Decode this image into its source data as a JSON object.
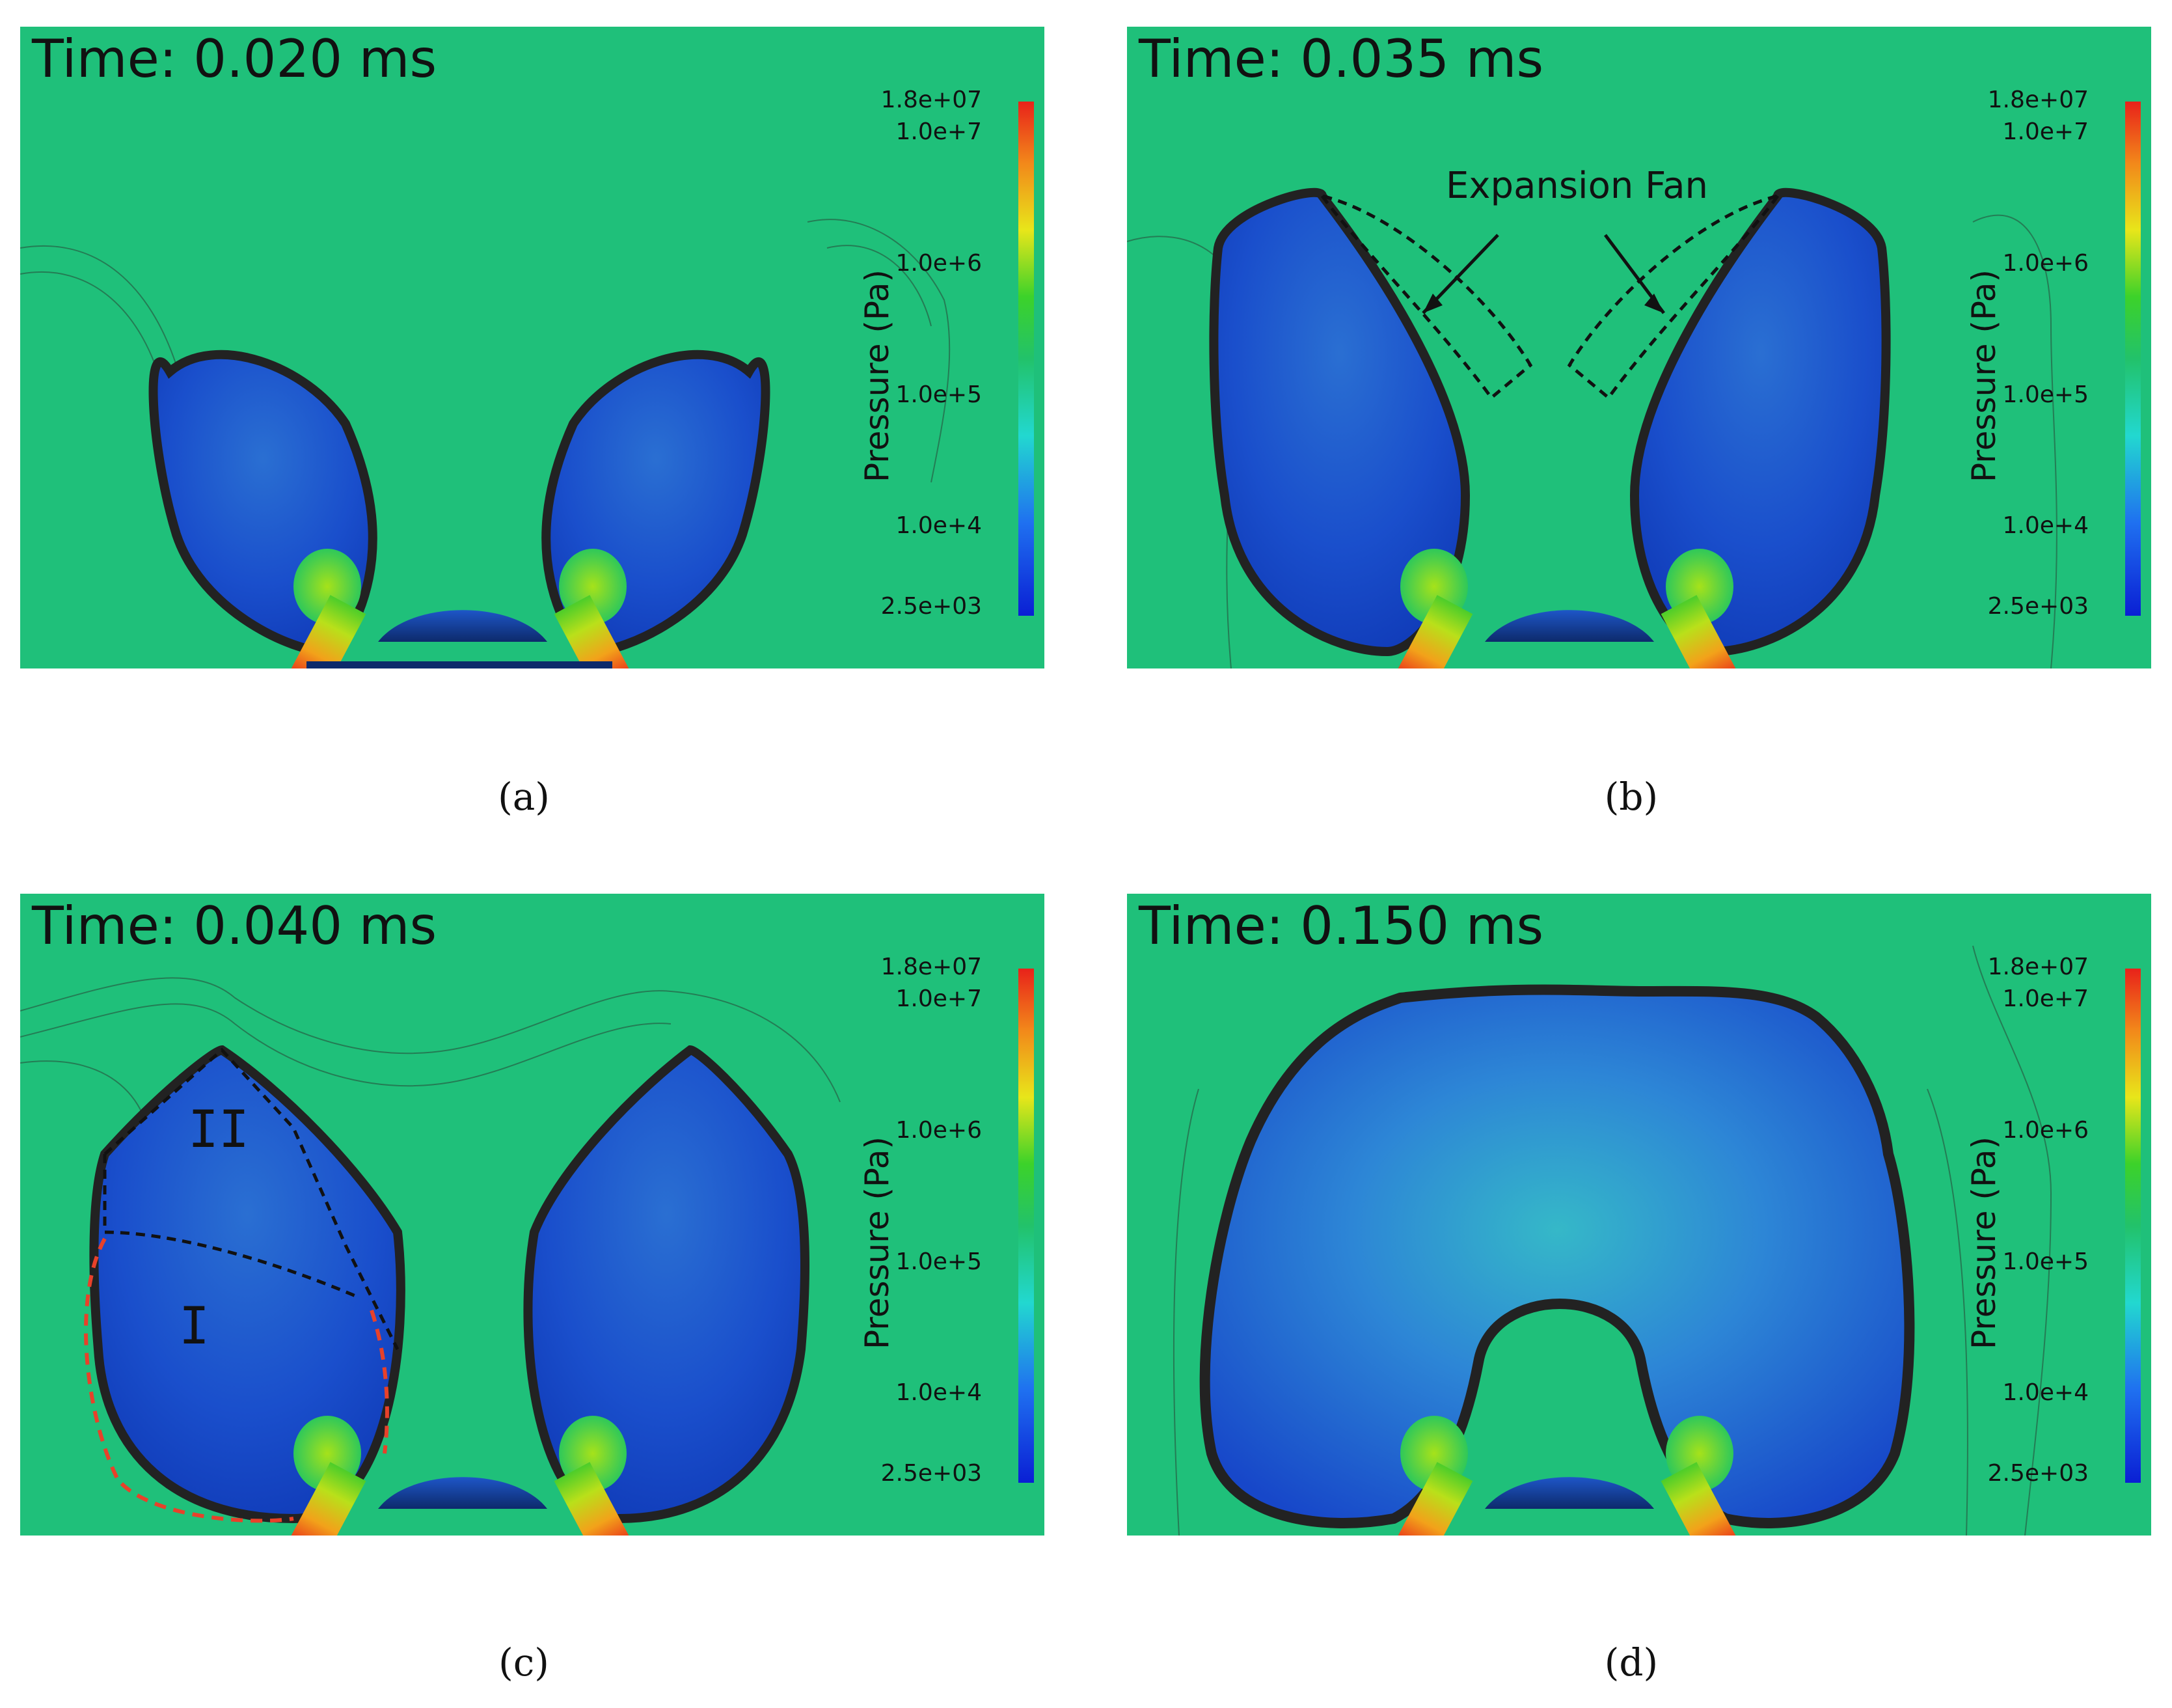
{
  "panels": [
    {
      "time": "Time: 0.020 ms",
      "caption": "(a)"
    },
    {
      "time": "Time: 0.035 ms",
      "caption": "(b)"
    },
    {
      "time": "Time: 0.040 ms",
      "caption": "(c)"
    },
    {
      "time": "Time: 0.150 ms",
      "caption": "(d)"
    }
  ],
  "colorbar": {
    "title": "Pressure (Pa)",
    "ticks": [
      "1.8e+07",
      "1.0e+7",
      "1.0e+6",
      "1.0e+5",
      "1.0e+4",
      "2.5e+03"
    ]
  },
  "annotations": {
    "expansion_fan": "Expansion Fan",
    "region_1": "I",
    "region_2": "II"
  },
  "colors": {
    "ambient": "#1fc07a",
    "low_pressure": "#1747c9",
    "high_pressure": "#e8221a",
    "body": "#0d2a6b"
  }
}
